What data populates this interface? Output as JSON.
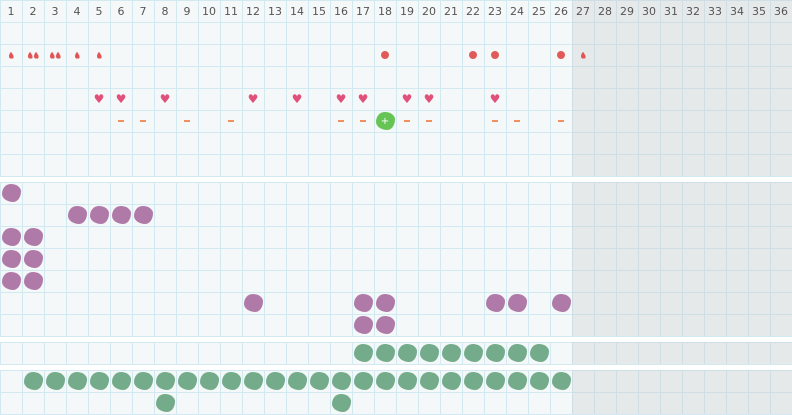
{
  "columns": [
    "1",
    "2",
    "3",
    "4",
    "5",
    "6",
    "7",
    "8",
    "9",
    "10",
    "11",
    "12",
    "13",
    "14",
    "15",
    "16",
    "17",
    "18",
    "19",
    "20",
    "21",
    "22",
    "23",
    "24",
    "25",
    "26",
    "27",
    "28",
    "29",
    "30",
    "31",
    "32",
    "33",
    "34",
    "35",
    "36"
  ],
  "shaded_from_column": 27,
  "colors": {
    "drop": "#e05555",
    "dot": "#e05a5a",
    "heart": "#e0507a",
    "dash": "#f09060",
    "purple": "#b07aa8",
    "green": "#74ab8a",
    "lime": "#66c455"
  },
  "sections": [
    {
      "rows": 7,
      "items": [
        {
          "row": 1,
          "icon": "drop-icon",
          "cols": [
            1,
            4,
            5,
            27
          ]
        },
        {
          "row": 1,
          "icon": "double-drop-icon",
          "cols": [
            2,
            3
          ]
        },
        {
          "row": 1,
          "icon": "dot-icon",
          "cols": [
            18,
            22,
            23,
            26
          ]
        },
        {
          "row": 3,
          "icon": "heart-icon",
          "cols": [
            5,
            6,
            8,
            12,
            14,
            16,
            17,
            19,
            20,
            23
          ]
        },
        {
          "row": 4,
          "icon": "dash-icon",
          "cols": [
            6,
            7,
            9,
            11,
            16,
            17,
            19,
            20,
            23,
            24,
            26
          ]
        },
        {
          "row": 4,
          "icon": "lime-blob-icon",
          "cols": [
            18
          ]
        }
      ]
    },
    {
      "rows": 7,
      "items": [
        {
          "row": 0,
          "icon": "purple-blob-icon",
          "cols": [
            1
          ]
        },
        {
          "row": 1,
          "icon": "purple-blob-icon",
          "cols": [
            4,
            5,
            6,
            7
          ]
        },
        {
          "row": 2,
          "icon": "purple-blob-icon",
          "cols": [
            1,
            2
          ]
        },
        {
          "row": 3,
          "icon": "purple-blob-icon",
          "cols": [
            1,
            2
          ]
        },
        {
          "row": 4,
          "icon": "purple-blob-icon",
          "cols": [
            1,
            2
          ]
        },
        {
          "row": 5,
          "icon": "purple-blob-icon",
          "cols": [
            12,
            17,
            18,
            23,
            24,
            26
          ]
        },
        {
          "row": 6,
          "icon": "purple-blob-icon",
          "cols": [
            17,
            18
          ]
        }
      ]
    },
    {
      "rows": 1,
      "items": [
        {
          "row": 0,
          "icon": "green-blob-icon",
          "cols": [
            17,
            18,
            19,
            20,
            21,
            22,
            23,
            24,
            25
          ]
        }
      ]
    },
    {
      "rows": 2,
      "items": [
        {
          "row": 0,
          "icon": "green-blob-icon",
          "cols": [
            2,
            3,
            4,
            5,
            6,
            7,
            8,
            9,
            10,
            11,
            12,
            13,
            14,
            15,
            16,
            17,
            18,
            19,
            20,
            21,
            22,
            23,
            24,
            25,
            26
          ]
        },
        {
          "row": 1,
          "icon": "green-blob-icon",
          "cols": [
            8,
            16
          ]
        }
      ]
    }
  ]
}
